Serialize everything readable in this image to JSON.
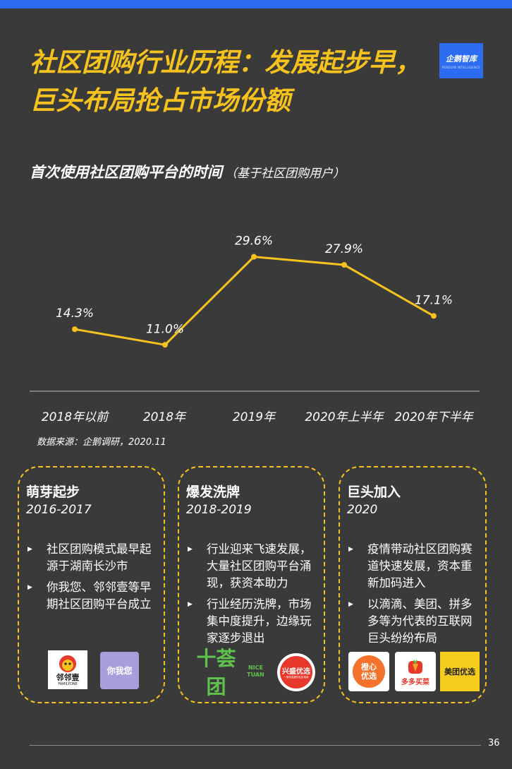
{
  "title": "社区团购行业历程：发展起步早，巨头布局抢占市场份额",
  "logo": {
    "text": "企鹅智库",
    "sub": "PENGUIN INTELLIGENCE"
  },
  "subtitle": "首次使用社区团购平台的时间",
  "subtitle_note": "（基于社区团购用户）",
  "chart_data": {
    "type": "line",
    "categories": [
      "2018年以前",
      "2018年",
      "2019年",
      "2020年上半年",
      "2020年下半年"
    ],
    "series": [
      {
        "values": [
          14.3,
          11.0,
          29.6,
          27.9,
          17.1
        ]
      }
    ],
    "data_labels": [
      "14.3%",
      "11.0%",
      "29.6%",
      "27.9%",
      "17.1%"
    ],
    "title": "",
    "xlabel": "",
    "ylabel": "",
    "ylim": [
      0,
      35
    ],
    "grid": false,
    "line_color": "#f6c21d"
  },
  "source": "数据来源：企鹅调研，2020.11",
  "cards": [
    {
      "title": "萌芽起步",
      "years": "2016-2017",
      "bullets": [
        "社区团购模式最早起源于湖南长沙市",
        "你我您、邻邻壹等早期社区团购平台成立"
      ],
      "logos": [
        "邻邻壹",
        "你我您"
      ]
    },
    {
      "title": "爆发洗牌",
      "years": "2018-2019",
      "bullets": [
        "行业迎来飞速发展，大量社区团购平台涌现，获资本助力",
        "行业经历洗牌，市场集中度提升，边缘玩家逐步退出"
      ],
      "logos": [
        "十荟团",
        "兴盛优选"
      ]
    },
    {
      "title": "巨头加入",
      "years": "2020",
      "bullets": [
        "疫情带动社区团购赛道快速发展，资本重新加码进入",
        "以滴滴、美团、拼多多等为代表的互联网巨头纷纷布局"
      ],
      "logos": [
        "橙心优选",
        "多多买菜",
        "美团优选"
      ]
    }
  ],
  "logo_text": {
    "familyone": "FAMILYONE",
    "nicetuan": "NICE TUAN",
    "xingsheng_sub": "一家有温度的社区电商"
  },
  "page_number": "36"
}
